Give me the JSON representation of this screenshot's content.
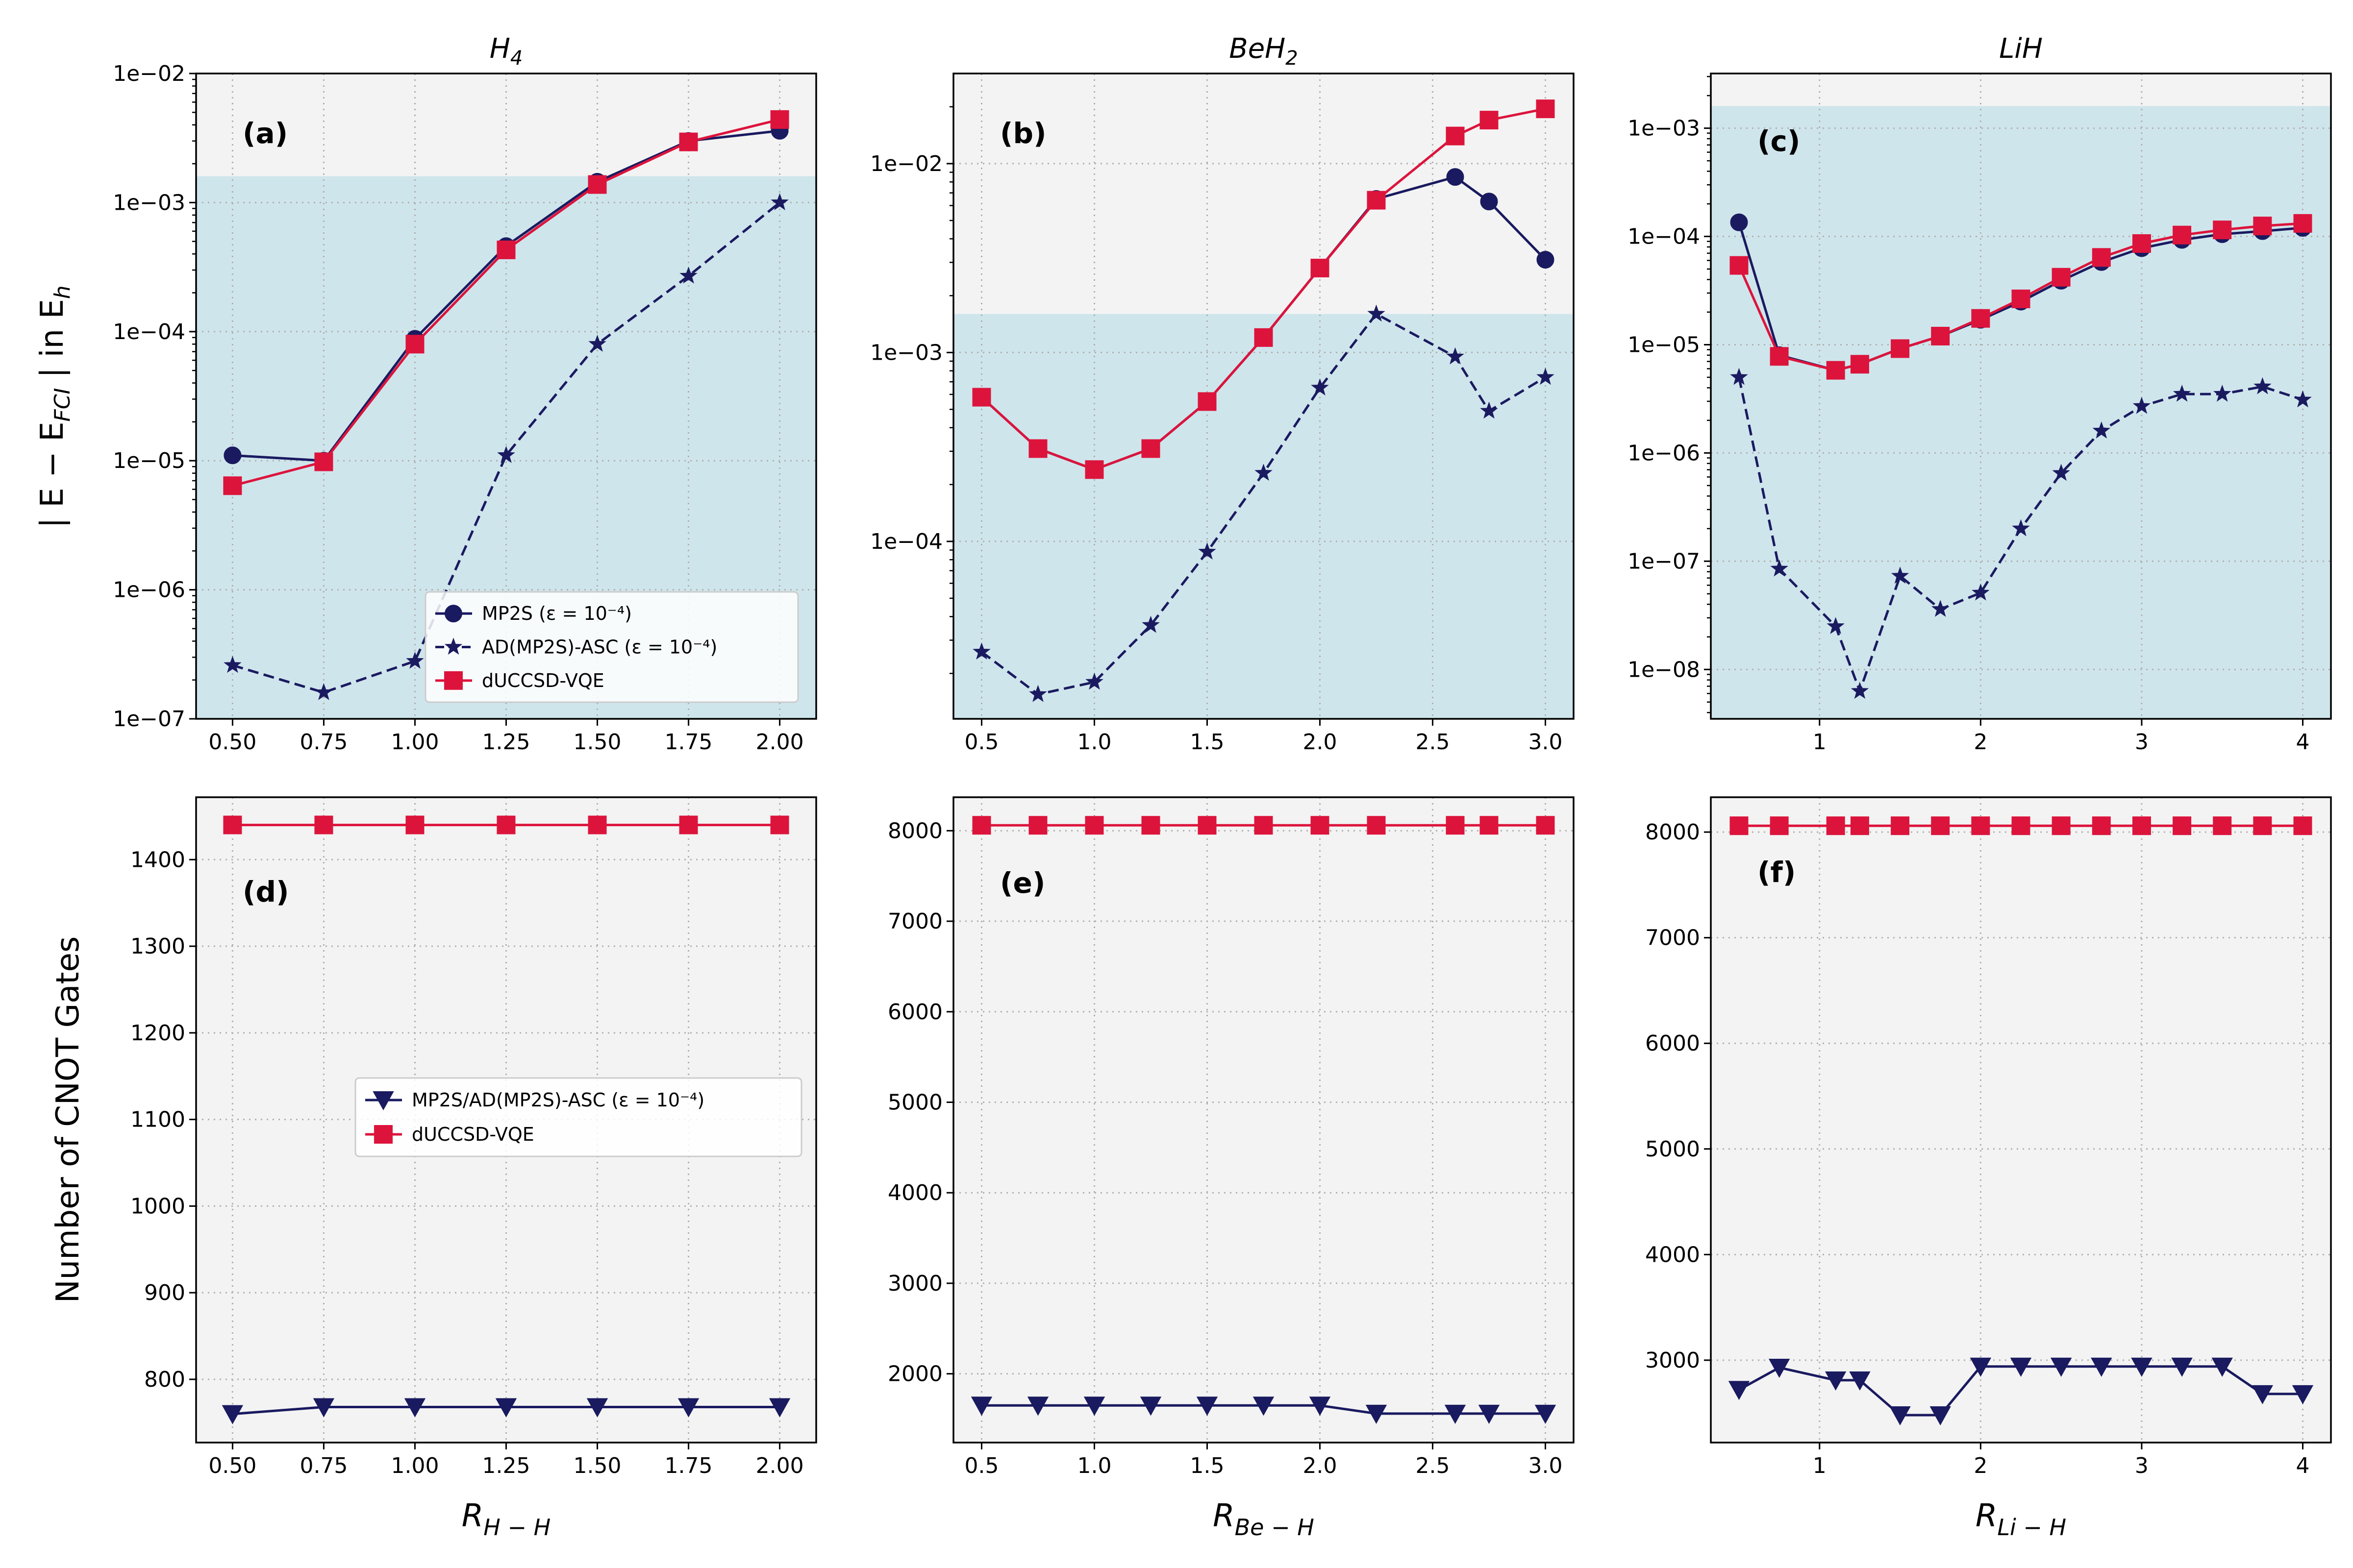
{
  "figure": {
    "ylabel_top": "| E − E",
    "ylabel_top_sub": "FCI",
    "ylabel_top_tail": " |  in E",
    "ylabel_top_tail_sub": "h",
    "ylabel_bottom": "Number of CNOT Gates"
  },
  "colors": {
    "navy": "#1a1a60",
    "crimson": "#dc143c",
    "plot_bg": "#f3f3f3",
    "accuracy_band": "#cfe5ec"
  },
  "chart_data": [
    {
      "id": "a",
      "panel_label": "(a)",
      "title": "H",
      "title_sub": "4",
      "type": "line",
      "yscale": "log",
      "xlim": [
        0.4,
        2.1
      ],
      "ylim": [
        1e-07,
        0.01
      ],
      "xticks": [
        0.5,
        0.75,
        1.0,
        1.25,
        1.5,
        1.75,
        2.0
      ],
      "xtick_labels": [
        "0.50",
        "0.75",
        "1.00",
        "1.25",
        "1.50",
        "1.75",
        "2.00"
      ],
      "yticks": [
        1e-07,
        1e-06,
        1e-05,
        0.0001,
        0.001,
        0.01
      ],
      "ytick_labels": [
        "1e−07",
        "1e−06",
        "1e−05",
        "1e−04",
        "1e−03",
        "1e−02"
      ],
      "xlabel": "",
      "xlabel_sub": "",
      "band_max": 0.0016,
      "grid": true,
      "legend": "lower-right",
      "series": [
        {
          "name": "MP2S (ε = 10⁻⁴)",
          "marker": "circle",
          "dash": false,
          "color": "#1a1a60",
          "x": [
            0.5,
            0.75,
            1.0,
            1.25,
            1.5,
            1.75,
            2.0
          ],
          "values": [
            1.1e-05,
            1e-05,
            8.8e-05,
            0.00046,
            0.00145,
            0.003,
            0.0036
          ]
        },
        {
          "name": "AD(MP2S)-ASC (ε = 10⁻⁴)",
          "marker": "star",
          "dash": true,
          "color": "#1a1a60",
          "x": [
            0.5,
            0.75,
            1.0,
            1.25,
            1.5,
            1.75,
            2.0
          ],
          "values": [
            2.6e-07,
            1.6e-07,
            2.8e-07,
            1.1e-05,
            8e-05,
            0.00027,
            0.001
          ]
        },
        {
          "name": "dUCCSD-VQE",
          "marker": "square",
          "dash": false,
          "color": "#dc143c",
          "x": [
            0.5,
            0.75,
            1.0,
            1.25,
            1.5,
            1.75,
            2.0
          ],
          "values": [
            6.4e-06,
            9.8e-06,
            8e-05,
            0.00043,
            0.00138,
            0.00295,
            0.0044
          ]
        }
      ]
    },
    {
      "id": "b",
      "panel_label": "(b)",
      "title": "BeH",
      "title_sub": "2",
      "type": "line",
      "yscale": "log",
      "xlim": [
        0.375,
        3.125
      ],
      "ylim": [
        1.15e-05,
        0.03
      ],
      "xticks": [
        0.5,
        1.0,
        1.5,
        2.0,
        2.5,
        3.0
      ],
      "xtick_labels": [
        "0.5",
        "1.0",
        "1.5",
        "2.0",
        "2.5",
        "3.0"
      ],
      "yticks": [
        0.0001,
        0.001,
        0.01
      ],
      "ytick_labels": [
        "1e−04",
        "1e−03",
        "1e−02"
      ],
      "xlabel": "",
      "xlabel_sub": "",
      "band_max": 0.0016,
      "grid": true,
      "legend": "none",
      "series": [
        {
          "name": "MP2S (ε = 10⁻⁴)",
          "marker": "circle",
          "dash": false,
          "color": "#1a1a60",
          "x": [
            0.5,
            0.75,
            1.0,
            1.25,
            1.5,
            1.75,
            2.0,
            2.25,
            2.6,
            2.75,
            3.0
          ],
          "values": [
            0.00058,
            0.00031,
            0.00024,
            0.00031,
            0.00055,
            0.0012,
            0.0028,
            0.0065,
            0.0085,
            0.0063,
            0.0031
          ]
        },
        {
          "name": "AD(MP2S)-ASC (ε = 10⁻⁴)",
          "marker": "star",
          "dash": true,
          "color": "#1a1a60",
          "x": [
            0.5,
            0.75,
            1.0,
            1.25,
            1.5,
            1.75,
            2.0,
            2.25,
            2.6,
            2.75,
            3.0
          ],
          "values": [
            2.6e-05,
            1.55e-05,
            1.8e-05,
            3.6e-05,
            8.8e-05,
            0.00023,
            0.00065,
            0.0016,
            0.00095,
            0.00049,
            0.00074
          ]
        },
        {
          "name": "dUCCSD-VQE",
          "marker": "square",
          "dash": false,
          "color": "#dc143c",
          "x": [
            0.5,
            0.75,
            1.0,
            1.25,
            1.5,
            1.75,
            2.0,
            2.25,
            2.6,
            2.75,
            3.0
          ],
          "values": [
            0.00058,
            0.00031,
            0.00024,
            0.00031,
            0.00055,
            0.0012,
            0.0028,
            0.0064,
            0.014,
            0.017,
            0.0195
          ]
        }
      ]
    },
    {
      "id": "c",
      "panel_label": "(c)",
      "title": "LiH",
      "title_sub": "",
      "type": "line",
      "yscale": "log",
      "xlim": [
        0.325,
        4.175
      ],
      "ylim": [
        3.5e-09,
        0.0032
      ],
      "xticks": [
        1,
        2,
        3,
        4
      ],
      "xtick_labels": [
        "1",
        "2",
        "3",
        "4"
      ],
      "yticks": [
        1e-08,
        1e-07,
        1e-06,
        1e-05,
        0.0001,
        0.001
      ],
      "ytick_labels": [
        "1e−08",
        "1e−07",
        "1e−06",
        "1e−05",
        "1e−04",
        "1e−03"
      ],
      "xlabel": "",
      "xlabel_sub": "",
      "band_max": 0.0016,
      "grid": true,
      "legend": "none",
      "series": [
        {
          "name": "MP2S (ε = 10⁻⁴)",
          "marker": "circle",
          "dash": false,
          "color": "#1a1a60",
          "x": [
            0.5,
            0.75,
            1.1,
            1.25,
            1.5,
            1.75,
            2.0,
            2.25,
            2.5,
            2.75,
            3.0,
            3.25,
            3.5,
            3.75,
            4.0
          ],
          "values": [
            0.000135,
            8e-06,
            5.8e-06,
            6.6e-06,
            9.2e-06,
            1.2e-05,
            1.7e-05,
            2.5e-05,
            3.9e-05,
            5.8e-05,
            7.8e-05,
            9.3e-05,
            0.000105,
            0.000112,
            0.00012
          ]
        },
        {
          "name": "AD(MP2S)-ASC (ε = 10⁻⁴)",
          "marker": "star",
          "dash": true,
          "color": "#1a1a60",
          "x": [
            0.5,
            0.75,
            1.1,
            1.25,
            1.5,
            1.75,
            2.0,
            2.25,
            2.5,
            2.75,
            3.0,
            3.25,
            3.5,
            3.75,
            4.0
          ],
          "values": [
            5e-06,
            8.5e-08,
            2.5e-08,
            6.3e-09,
            7.3e-08,
            3.6e-08,
            5.1e-08,
            2e-07,
            6.5e-07,
            1.6e-06,
            2.7e-06,
            3.5e-06,
            3.5e-06,
            4.1e-06,
            3.1e-06
          ]
        },
        {
          "name": "dUCCSD-VQE",
          "marker": "square",
          "dash": false,
          "color": "#dc143c",
          "x": [
            0.5,
            0.75,
            1.1,
            1.25,
            1.5,
            1.75,
            2.0,
            2.25,
            2.5,
            2.75,
            3.0,
            3.25,
            3.5,
            3.75,
            4.0
          ],
          "values": [
            5.4e-05,
            7.8e-06,
            5.8e-06,
            6.6e-06,
            9.2e-06,
            1.2e-05,
            1.75e-05,
            2.65e-05,
            4.2e-05,
            6.4e-05,
            8.6e-05,
            0.000103,
            0.000115,
            0.000125,
            0.000132
          ]
        }
      ]
    },
    {
      "id": "d",
      "panel_label": "(d)",
      "title": "",
      "title_sub": "",
      "type": "line",
      "yscale": "linear",
      "xlim": [
        0.4,
        2.1
      ],
      "ylim": [
        727,
        1472
      ],
      "xticks": [
        0.5,
        0.75,
        1.0,
        1.25,
        1.5,
        1.75,
        2.0
      ],
      "xtick_labels": [
        "0.50",
        "0.75",
        "1.00",
        "1.25",
        "1.50",
        "1.75",
        "2.00"
      ],
      "yticks": [
        800,
        900,
        1000,
        1100,
        1200,
        1300,
        1400
      ],
      "ytick_labels": [
        "800",
        "900",
        "1000",
        "1100",
        "1200",
        "1300",
        "1400"
      ],
      "xlabel": "R",
      "xlabel_sub": "H − H",
      "band_max": null,
      "grid": true,
      "legend": "center-right",
      "series": [
        {
          "name": "MP2S/AD(MP2S)-ASC (ε = 10⁻⁴)",
          "marker": "triangle-down",
          "dash": false,
          "color": "#1a1a60",
          "x": [
            0.5,
            0.75,
            1.0,
            1.25,
            1.5,
            1.75,
            2.0
          ],
          "values": [
            760,
            768,
            768,
            768,
            768,
            768,
            768
          ]
        },
        {
          "name": "dUCCSD-VQE",
          "marker": "square",
          "dash": false,
          "color": "#dc143c",
          "x": [
            0.5,
            0.75,
            1.0,
            1.25,
            1.5,
            1.75,
            2.0
          ],
          "values": [
            1440,
            1440,
            1440,
            1440,
            1440,
            1440,
            1440
          ]
        }
      ]
    },
    {
      "id": "e",
      "panel_label": "(e)",
      "title": "",
      "title_sub": "",
      "type": "line",
      "yscale": "linear",
      "xlim": [
        0.375,
        3.125
      ],
      "ylim": [
        1240,
        8370
      ],
      "xticks": [
        0.5,
        1.0,
        1.5,
        2.0,
        2.5,
        3.0
      ],
      "xtick_labels": [
        "0.5",
        "1.0",
        "1.5",
        "2.0",
        "2.5",
        "3.0"
      ],
      "yticks": [
        2000,
        3000,
        4000,
        5000,
        6000,
        7000,
        8000
      ],
      "ytick_labels": [
        "2000",
        "3000",
        "4000",
        "5000",
        "6000",
        "7000",
        "8000"
      ],
      "xlabel": "R",
      "xlabel_sub": "Be − H",
      "band_max": null,
      "grid": true,
      "legend": "none",
      "series": [
        {
          "name": "MP2S/AD(MP2S)-ASC (ε = 10⁻⁴)",
          "marker": "triangle-down",
          "dash": false,
          "color": "#1a1a60",
          "x": [
            0.5,
            0.75,
            1.0,
            1.25,
            1.5,
            1.75,
            2.0,
            2.25,
            2.6,
            2.75,
            3.0
          ],
          "values": [
            1650,
            1650,
            1650,
            1650,
            1650,
            1650,
            1650,
            1560,
            1560,
            1560,
            1560
          ]
        },
        {
          "name": "dUCCSD-VQE",
          "marker": "square",
          "dash": false,
          "color": "#dc143c",
          "x": [
            0.5,
            0.75,
            1.0,
            1.25,
            1.5,
            1.75,
            2.0,
            2.25,
            2.6,
            2.75,
            3.0
          ],
          "values": [
            8060,
            8060,
            8060,
            8060,
            8060,
            8060,
            8060,
            8060,
            8060,
            8060,
            8060
          ]
        }
      ]
    },
    {
      "id": "f",
      "panel_label": "(f)",
      "title": "",
      "title_sub": "",
      "type": "line",
      "yscale": "linear",
      "xlim": [
        0.325,
        4.175
      ],
      "ylim": [
        2220,
        8330
      ],
      "xticks": [
        1,
        2,
        3,
        4
      ],
      "xtick_labels": [
        "1",
        "2",
        "3",
        "4"
      ],
      "yticks": [
        3000,
        4000,
        5000,
        6000,
        7000,
        8000
      ],
      "ytick_labels": [
        "3000",
        "4000",
        "5000",
        "6000",
        "7000",
        "8000"
      ],
      "xlabel": "R",
      "xlabel_sub": "Li − H",
      "band_max": null,
      "grid": true,
      "legend": "none",
      "series": [
        {
          "name": "MP2S/AD(MP2S)-ASC (ε = 10⁻⁴)",
          "marker": "triangle-down",
          "dash": false,
          "color": "#1a1a60",
          "x": [
            0.5,
            0.75,
            1.1,
            1.25,
            1.5,
            1.75,
            2.0,
            2.25,
            2.5,
            2.75,
            3.0,
            3.25,
            3.5,
            3.75,
            4.0
          ],
          "values": [
            2720,
            2930,
            2810,
            2810,
            2480,
            2480,
            2940,
            2940,
            2940,
            2940,
            2940,
            2940,
            2940,
            2680,
            2680
          ]
        },
        {
          "name": "dUCCSD-VQE",
          "marker": "square",
          "dash": false,
          "color": "#dc143c",
          "x": [
            0.5,
            0.75,
            1.1,
            1.25,
            1.5,
            1.75,
            2.0,
            2.25,
            2.5,
            2.75,
            3.0,
            3.25,
            3.5,
            3.75,
            4.0
          ],
          "values": [
            8060,
            8060,
            8060,
            8060,
            8060,
            8060,
            8060,
            8060,
            8060,
            8060,
            8060,
            8060,
            8060,
            8060,
            8060
          ]
        }
      ]
    }
  ]
}
